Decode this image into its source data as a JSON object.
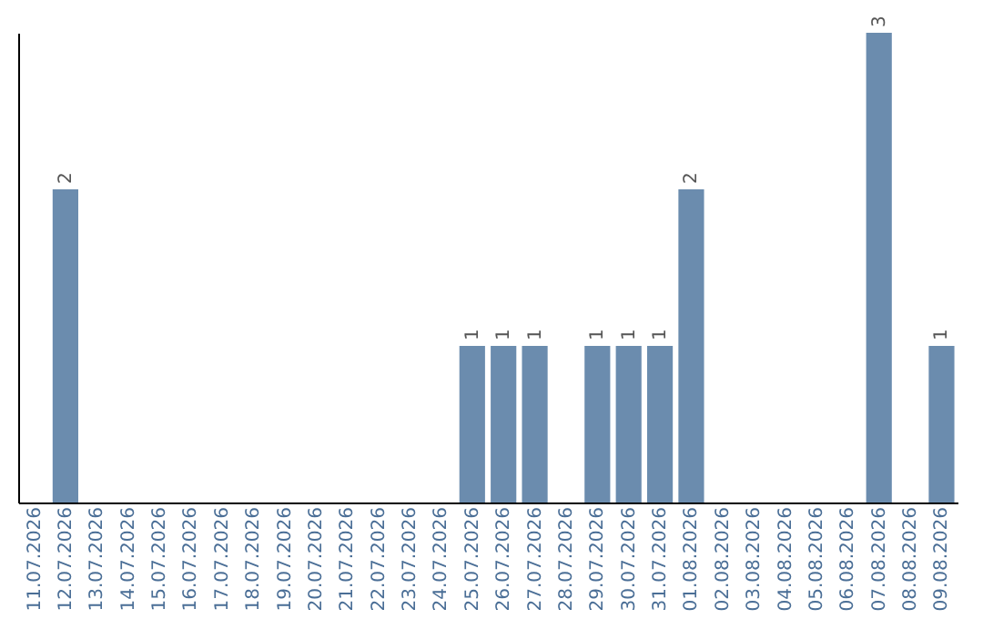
{
  "chart_data": {
    "type": "bar",
    "categories": [
      "11.07.2026",
      "12.07.2026",
      "13.07.2026",
      "14.07.2026",
      "15.07.2026",
      "16.07.2026",
      "17.07.2026",
      "18.07.2026",
      "19.07.2026",
      "20.07.2026",
      "21.07.2026",
      "22.07.2026",
      "23.07.2026",
      "24.07.2026",
      "25.07.2026",
      "26.07.2026",
      "27.07.2026",
      "28.07.2026",
      "29.07.2026",
      "30.07.2026",
      "31.07.2026",
      "01.08.2026",
      "02.08.2026",
      "03.08.2026",
      "04.08.2026",
      "05.08.2026",
      "06.08.2026",
      "07.08.2026",
      "08.08.2026",
      "09.08.2026"
    ],
    "values": [
      0,
      2,
      0,
      0,
      0,
      0,
      0,
      0,
      0,
      0,
      0,
      0,
      0,
      0,
      1,
      1,
      1,
      0,
      1,
      1,
      1,
      2,
      0,
      0,
      0,
      0,
      0,
      3,
      0,
      1
    ],
    "value_labels": [
      null,
      "2",
      null,
      null,
      null,
      null,
      null,
      null,
      null,
      null,
      null,
      null,
      null,
      null,
      "1",
      "1",
      "1",
      null,
      "1",
      "1",
      "1",
      "2",
      null,
      null,
      null,
      null,
      null,
      "3",
      null,
      "1"
    ],
    "color": "#6b8cae",
    "grid": false,
    "tick_labels": "x"
  }
}
